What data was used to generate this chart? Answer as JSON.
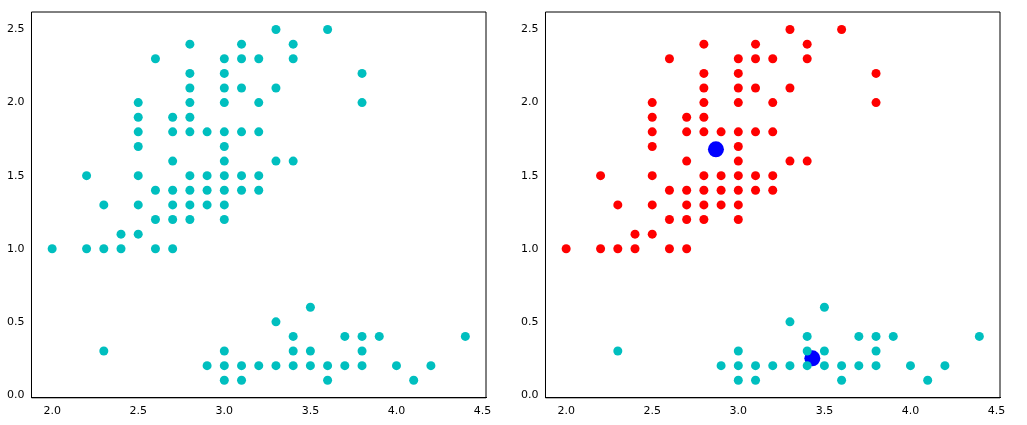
{
  "chart_data": [
    {
      "type": "scatter",
      "xlim": [
        1.88,
        4.52
      ],
      "ylim": [
        -0.02,
        2.62
      ],
      "xticks": [
        {
          "value": 2,
          "label": "2.0"
        },
        2.5,
        {
          "value": 3,
          "label": "3.0"
        },
        3.5,
        {
          "value": 4,
          "label": "4.0"
        },
        4.5
      ],
      "yticks": [
        {
          "value": 0,
          "label": "0.0"
        },
        0.5,
        {
          "value": 1,
          "label": "1.0"
        },
        1.5,
        {
          "value": 2,
          "label": "2.0"
        },
        2.5
      ],
      "grid": false,
      "legend": false,
      "marker": "circle",
      "series": [
        {
          "color": "#00bfbf",
          "x": [
            3.3,
            3.6,
            2.8,
            3.1,
            3.4,
            2.6,
            3.0,
            3.1,
            3.2,
            3.4,
            2.8,
            3.0,
            3.8,
            2.8,
            3.0,
            3.1,
            3.3,
            2.5,
            2.8,
            3.0,
            3.2,
            3.8,
            2.5,
            2.7,
            2.8,
            2.5,
            2.7,
            2.8,
            2.9,
            3.0,
            3.1,
            3.2,
            2.5,
            3.0,
            2.7,
            3.0,
            3.3,
            3.4,
            2.2,
            2.5,
            2.8,
            2.9,
            3.0,
            3.1,
            3.2,
            2.6,
            2.7,
            2.8,
            2.9,
            3.0,
            3.1,
            3.2,
            2.3,
            2.5,
            2.7,
            2.8,
            2.9,
            3.0,
            2.6,
            2.7,
            2.8,
            3.0,
            2.4,
            2.5,
            2.0,
            2.2,
            2.3,
            2.4,
            2.6,
            2.7,
            2.3,
            3.5,
            3.3,
            3.4,
            3.7,
            3.8,
            3.9,
            4.4,
            3.0,
            3.4,
            3.5,
            3.8,
            2.9,
            3.0,
            3.1,
            3.2,
            3.3,
            3.4,
            3.5,
            3.6,
            3.7,
            3.8,
            4.0,
            4.2,
            3.0,
            3.1,
            3.6,
            4.1
          ],
          "values": [
            2.5,
            2.5,
            2.4,
            2.4,
            2.4,
            2.3,
            2.3,
            2.3,
            2.3,
            2.3,
            2.2,
            2.2,
            2.2,
            2.1,
            2.1,
            2.1,
            2.1,
            2.0,
            2.0,
            2.0,
            2.0,
            2.0,
            1.9,
            1.9,
            1.9,
            1.8,
            1.8,
            1.8,
            1.8,
            1.8,
            1.8,
            1.8,
            1.7,
            1.7,
            1.6,
            1.6,
            1.6,
            1.6,
            1.5,
            1.5,
            1.5,
            1.5,
            1.5,
            1.5,
            1.5,
            1.4,
            1.4,
            1.4,
            1.4,
            1.4,
            1.4,
            1.4,
            1.3,
            1.3,
            1.3,
            1.3,
            1.3,
            1.3,
            1.2,
            1.2,
            1.2,
            1.2,
            1.1,
            1.1,
            1.0,
            1.0,
            1.0,
            1.0,
            1.0,
            1.0,
            0.3,
            0.6,
            0.5,
            0.4,
            0.4,
            0.4,
            0.4,
            0.4,
            0.3,
            0.3,
            0.3,
            0.3,
            0.2,
            0.2,
            0.2,
            0.2,
            0.2,
            0.2,
            0.2,
            0.2,
            0.2,
            0.2,
            0.2,
            0.2,
            0.1,
            0.1,
            0.1,
            0.1
          ]
        }
      ]
    },
    {
      "type": "scatter",
      "xlim": [
        1.88,
        4.52
      ],
      "ylim": [
        -0.02,
        2.62
      ],
      "xticks": [
        {
          "value": 2,
          "label": "2.0"
        },
        2.5,
        {
          "value": 3,
          "label": "3.0"
        },
        3.5,
        {
          "value": 4,
          "label": "4.0"
        },
        4.5
      ],
      "yticks": [
        {
          "value": 0,
          "label": "0.0"
        },
        0.5,
        {
          "value": 1,
          "label": "1.0"
        },
        1.5,
        {
          "value": 2,
          "label": "2.0"
        },
        2.5
      ],
      "grid": false,
      "legend": false,
      "marker": "circle",
      "series": [
        {
          "color": "#ff0000",
          "x": [
            3.3,
            3.6,
            2.8,
            3.1,
            3.4,
            2.6,
            3.0,
            3.1,
            3.2,
            3.4,
            2.8,
            3.0,
            3.8,
            2.8,
            3.0,
            3.1,
            3.3,
            2.5,
            2.8,
            3.0,
            3.2,
            3.8,
            2.5,
            2.7,
            2.8,
            2.5,
            2.7,
            2.8,
            2.9,
            3.0,
            3.1,
            3.2,
            2.5,
            3.0,
            2.7,
            3.0,
            3.3,
            3.4,
            2.2,
            2.5,
            2.8,
            2.9,
            3.0,
            3.1,
            3.2,
            2.6,
            2.7,
            2.8,
            2.9,
            3.0,
            3.1,
            3.2,
            2.3,
            2.5,
            2.7,
            2.8,
            2.9,
            3.0,
            2.6,
            2.7,
            2.8,
            3.0,
            2.4,
            2.5,
            2.0,
            2.2,
            2.3,
            2.4,
            2.6,
            2.7
          ],
          "values": [
            2.5,
            2.5,
            2.4,
            2.4,
            2.4,
            2.3,
            2.3,
            2.3,
            2.3,
            2.3,
            2.2,
            2.2,
            2.2,
            2.1,
            2.1,
            2.1,
            2.1,
            2.0,
            2.0,
            2.0,
            2.0,
            2.0,
            1.9,
            1.9,
            1.9,
            1.8,
            1.8,
            1.8,
            1.8,
            1.8,
            1.8,
            1.8,
            1.7,
            1.7,
            1.6,
            1.6,
            1.6,
            1.6,
            1.5,
            1.5,
            1.5,
            1.5,
            1.5,
            1.5,
            1.5,
            1.4,
            1.4,
            1.4,
            1.4,
            1.4,
            1.4,
            1.4,
            1.3,
            1.3,
            1.3,
            1.3,
            1.3,
            1.3,
            1.2,
            1.2,
            1.2,
            1.2,
            1.1,
            1.1,
            1.0,
            1.0,
            1.0,
            1.0,
            1.0,
            1.0
          ]
        },
        {
          "color": "#00bfbf",
          "x": [
            2.3,
            3.5,
            3.3,
            3.4,
            3.7,
            3.8,
            3.9,
            4.4,
            3.0,
            3.4,
            3.5,
            3.8,
            2.9,
            3.0,
            3.1,
            3.2,
            3.3,
            3.4,
            3.5,
            3.6,
            3.7,
            3.8,
            4.0,
            4.2,
            3.0,
            3.1,
            3.6,
            4.1
          ],
          "values": [
            0.3,
            0.6,
            0.5,
            0.4,
            0.4,
            0.4,
            0.4,
            0.4,
            0.3,
            0.3,
            0.3,
            0.3,
            0.2,
            0.2,
            0.2,
            0.2,
            0.2,
            0.2,
            0.2,
            0.2,
            0.2,
            0.2,
            0.2,
            0.2,
            0.1,
            0.1,
            0.1,
            0.1
          ]
        },
        {
          "color": "#0000ff",
          "x": [
            2.87,
            3.43
          ],
          "values": [
            1.68,
            0.25
          ]
        }
      ]
    }
  ]
}
